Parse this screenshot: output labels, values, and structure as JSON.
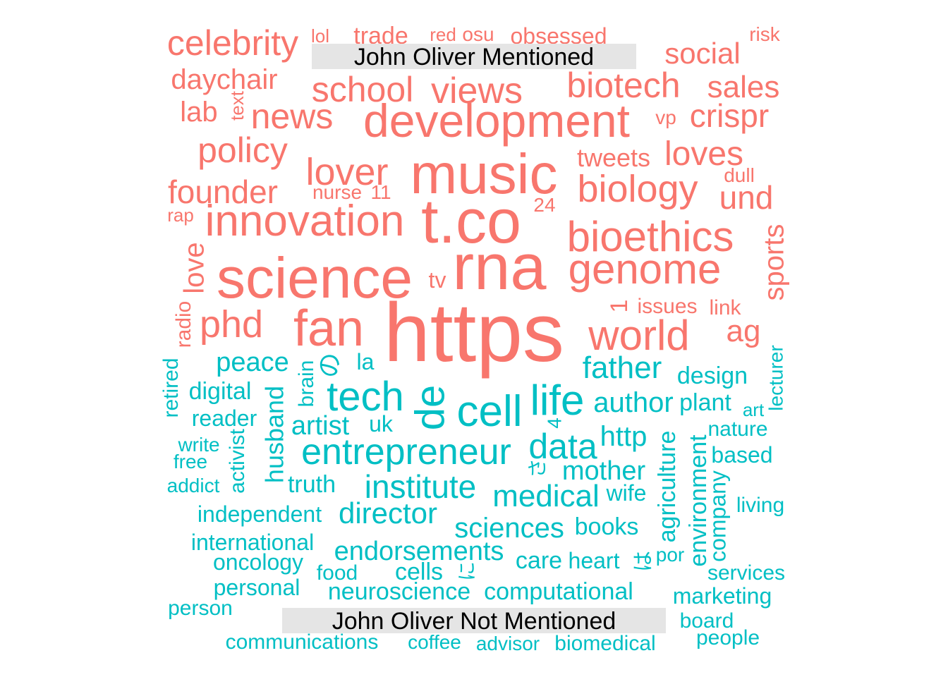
{
  "chart_data": {
    "type": "wordcloud",
    "colors": {
      "John Oliver Mentioned": "#F8766D",
      "John Oliver Not Mentioned": "#00BFC4"
    },
    "groups": [
      {
        "label": "John Oliver Mentioned",
        "color": "#F8766D",
        "words": [
          "https",
          "rna",
          "t.co",
          "music",
          "science",
          "development",
          "fan",
          "innovation",
          "bioethics",
          "genome",
          "world",
          "biology",
          "phd",
          "lover",
          "views",
          "school",
          "biotech",
          "news",
          "celebrity",
          "policy",
          "founder",
          "social",
          "sales",
          "loves",
          "crispr",
          "daychair",
          "lab",
          "und",
          "sports",
          "love",
          "ag",
          "trade",
          "obsessed",
          "tweets",
          "text",
          "radio",
          "issues",
          "link",
          "tv",
          "1",
          "24",
          "11",
          "nurse",
          "dull",
          "vp",
          "lol",
          "red",
          "osu",
          "risk",
          "rap"
        ]
      },
      {
        "label": "John Oliver Not Mentioned",
        "color": "#00BFC4",
        "words": [
          "de",
          "cell",
          "life",
          "tech",
          "entrepreneur",
          "data",
          "father",
          "institute",
          "medical",
          "director",
          "author",
          "sciences",
          "endorsements",
          "mother",
          "http",
          "artist",
          "peace",
          "design",
          "plant",
          "agriculture",
          "environment",
          "husband",
          "digital",
          "reader",
          "computational",
          "neuroscience",
          "books",
          "care",
          "heart",
          "independent",
          "international",
          "oncology",
          "cells",
          "personal",
          "communications",
          "biomedical",
          "marketing",
          "board",
          "people",
          "person",
          "company",
          "brain",
          "activist",
          "retired",
          "lecturer",
          "truth",
          "food",
          "coffee",
          "advisor",
          "services",
          "living",
          "based",
          "nature",
          "wife",
          "uk",
          "la",
          "の",
          "art",
          "write",
          "free",
          "addict",
          "por",
          "は",
          "に",
          "4",
          "さ"
        ]
      }
    ]
  }
}
